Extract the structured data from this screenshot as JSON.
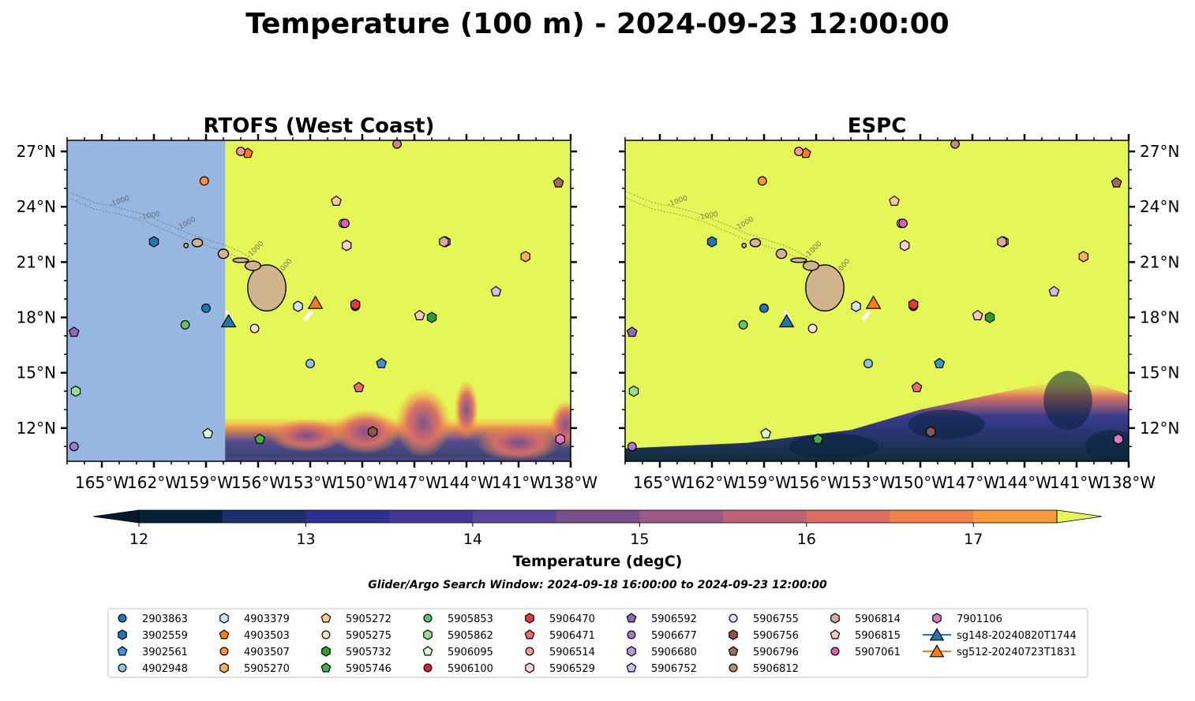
{
  "title": "Temperature (100 m) - 2024-09-23 12:00:00",
  "subtitle": "Glider/Argo Search Window: 2024-09-18 16:00:00 to 2024-09-23 12:00:00",
  "colors": {
    "ocean_clipped": "#97b6e0",
    "max_fill": "#e5f756",
    "land": "#d2b48c",
    "white_patch": "#ffffff"
  },
  "chart_data": [
    {
      "type": "heatmap",
      "panel": "left",
      "title": "RTOFS (West Coast)",
      "x_ticklabels": [
        "165°W",
        "162°W",
        "159°W",
        "156°W",
        "153°W",
        "150°W",
        "147°W",
        "144°W",
        "141°W",
        "138°W"
      ],
      "y_ticklabels": [
        "27°N",
        "24°N",
        "21°N",
        "18°N",
        "15°N",
        "12°N"
      ],
      "xlim": [
        -167,
        -138
      ],
      "ylim": [
        10.2,
        27.6
      ],
      "model_domain_west_edge_lon": -157.9,
      "bathymetry_contour_label": "-1000"
    },
    {
      "type": "heatmap",
      "panel": "right",
      "title": "ESPC",
      "x_ticklabels": [
        "165°W",
        "162°W",
        "159°W",
        "156°W",
        "153°W",
        "150°W",
        "147°W",
        "144°W",
        "141°W",
        "138°W"
      ],
      "y_ticklabels": [
        "27°N",
        "24°N",
        "21°N",
        "18°N",
        "15°N",
        "12°N"
      ],
      "xlim": [
        -167,
        -138
      ],
      "ylim": [
        10.2,
        27.6
      ],
      "bathymetry_contour_label": "-1000"
    }
  ],
  "colorbar": {
    "label": "Temperature (degC)",
    "ticks": [
      "12",
      "13",
      "14",
      "15",
      "16",
      "17"
    ],
    "range": [
      12,
      17.5
    ],
    "levels": [
      12,
      12.5,
      13,
      13.5,
      14,
      14.5,
      15,
      15.5,
      16,
      16.5,
      17,
      17.5
    ],
    "colors": [
      "#062339",
      "#1d2f6e",
      "#2f3192",
      "#463897",
      "#5b4495",
      "#7a4f8c",
      "#9b5a84",
      "#bd6376",
      "#dc6e64",
      "#ef804c",
      "#fa9a3c",
      "#f6c247"
    ],
    "under_color": "#041a2a",
    "over_color": "#e5f756"
  },
  "legend": {
    "columns": [
      [
        {
          "label": "2903863",
          "shape": "circle",
          "color": "#1f77b4"
        },
        {
          "label": "3902559",
          "shape": "hexagon",
          "color": "#1f77b4"
        },
        {
          "label": "3902561",
          "shape": "pentagon",
          "color": "#3b95d6"
        },
        {
          "label": "4902948",
          "shape": "circle",
          "color": "#8fc3e8"
        }
      ],
      [
        {
          "label": "4903379",
          "shape": "hexagon",
          "color": "#cfe5f5"
        },
        {
          "label": "4903503",
          "shape": "pentagon",
          "color": "#ff7f0e"
        },
        {
          "label": "4903507",
          "shape": "circle",
          "color": "#ff9331"
        },
        {
          "label": "5905270",
          "shape": "hexagon",
          "color": "#ffae62"
        }
      ],
      [
        {
          "label": "5905272",
          "shape": "pentagon",
          "color": "#ffc98e"
        },
        {
          "label": "5905275",
          "shape": "circle",
          "color": "#ffe0c0"
        },
        {
          "label": "5905732",
          "shape": "hexagon",
          "color": "#2ca02c"
        },
        {
          "label": "5905746",
          "shape": "pentagon",
          "color": "#45b045"
        }
      ],
      [
        {
          "label": "5905853",
          "shape": "circle",
          "color": "#62c462"
        },
        {
          "label": "5905862",
          "shape": "hexagon",
          "color": "#98df8a"
        },
        {
          "label": "5906095",
          "shape": "pentagon",
          "color": "#d8fbd0"
        },
        {
          "label": "5906100",
          "shape": "circle",
          "color": "#d62728"
        }
      ],
      [
        {
          "label": "5906470",
          "shape": "hexagon",
          "color": "#df3b3b"
        },
        {
          "label": "5906471",
          "shape": "pentagon",
          "color": "#ec6b6b"
        },
        {
          "label": "5906514",
          "shape": "circle",
          "color": "#f79a9a"
        },
        {
          "label": "5906529",
          "shape": "hexagon",
          "color": "#fcd0d0"
        }
      ],
      [
        {
          "label": "5906592",
          "shape": "pentagon",
          "color": "#9467bd"
        },
        {
          "label": "5906677",
          "shape": "circle",
          "color": "#a57ccc"
        },
        {
          "label": "5906680",
          "shape": "hexagon",
          "color": "#b897dc"
        },
        {
          "label": "5906752",
          "shape": "pentagon",
          "color": "#d2bcf0"
        }
      ],
      [
        {
          "label": "5906755",
          "shape": "circle",
          "color": "#ecdcfb"
        },
        {
          "label": "5906756",
          "shape": "hexagon",
          "color": "#8c564b"
        },
        {
          "label": "5906796",
          "shape": "pentagon",
          "color": "#a06a5d"
        },
        {
          "label": "5906812",
          "shape": "circle",
          "color": "#c08a7d"
        }
      ],
      [
        {
          "label": "5906814",
          "shape": "hexagon",
          "color": "#dca99b"
        },
        {
          "label": "5906815",
          "shape": "pentagon",
          "color": "#f7c9bd"
        },
        {
          "label": "5907061",
          "shape": "circle",
          "color": "#d85fbe"
        }
      ],
      [
        {
          "label": "7901106",
          "shape": "hexagon",
          "color": "#e377c2"
        },
        {
          "label": "sg148-20240820T1744",
          "shape": "triangle",
          "color": "#1f77b4",
          "line": true
        },
        {
          "label": "sg512-20240723T1831",
          "shape": "triangle",
          "color": "#ff7f0e",
          "line": true
        }
      ]
    ]
  },
  "platforms": [
    {
      "id": "2903863",
      "lon": -159.0,
      "lat": 18.5
    },
    {
      "id": "3902559",
      "lon": -162.0,
      "lat": 22.1
    },
    {
      "id": "3902561",
      "lon": -148.9,
      "lat": 15.5
    },
    {
      "id": "4902948",
      "lon": -153.0,
      "lat": 15.5
    },
    {
      "id": "4903379",
      "lon": -153.7,
      "lat": 18.6
    },
    {
      "id": "4903503",
      "lon": -156.6,
      "lat": 26.9
    },
    {
      "id": "4903507",
      "lon": -159.1,
      "lat": 25.4
    },
    {
      "id": "5905270",
      "lon": -140.6,
      "lat": 21.3
    },
    {
      "id": "5905272",
      "lon": -151.5,
      "lat": 24.3
    },
    {
      "id": "5905275",
      "lon": -156.2,
      "lat": 17.4
    },
    {
      "id": "5905732",
      "lon": -146.0,
      "lat": 18.0
    },
    {
      "id": "5905746",
      "lon": -155.9,
      "lat": 11.4
    },
    {
      "id": "5905853",
      "lon": -160.2,
      "lat": 17.6
    },
    {
      "id": "5905862",
      "lon": -166.5,
      "lat": 14.0
    },
    {
      "id": "5906095",
      "lon": -158.9,
      "lat": 11.7
    },
    {
      "id": "5906100",
      "lon": -150.4,
      "lat": 18.6
    },
    {
      "id": "5906470",
      "lon": -150.4,
      "lat": 18.7
    },
    {
      "id": "5906471",
      "lon": -150.2,
      "lat": 14.2
    },
    {
      "id": "5906514",
      "lon": -157.0,
      "lat": 27.0
    },
    {
      "id": "5906529",
      "lon": -150.9,
      "lat": 21.9
    },
    {
      "id": "5906592",
      "lon": -166.6,
      "lat": 17.2
    },
    {
      "id": "5906677",
      "lon": -166.6,
      "lat": 11.0
    },
    {
      "id": "5906680",
      "lon": -145.2,
      "lat": 22.1
    },
    {
      "id": "5906752",
      "lon": -142.3,
      "lat": 19.4
    },
    {
      "id": "5906755",
      "lon": -151.1,
      "lat": 23.1
    },
    {
      "id": "5906756",
      "lon": -149.4,
      "lat": 11.8
    },
    {
      "id": "5906796",
      "lon": -138.7,
      "lat": 25.3
    },
    {
      "id": "5906812",
      "lon": -148.0,
      "lat": 27.4
    },
    {
      "id": "5906814",
      "lon": -145.3,
      "lat": 22.1
    },
    {
      "id": "5906815",
      "lon": -146.7,
      "lat": 18.1
    },
    {
      "id": "5907061",
      "lon": -151.0,
      "lat": 23.1
    },
    {
      "id": "7901106",
      "lon": -138.6,
      "lat": 11.4
    },
    {
      "id": "sg148-20240820T1744",
      "lon": -157.7,
      "lat": 17.8
    },
    {
      "id": "sg512-20240723T1831",
      "lon": -152.7,
      "lat": 18.8
    }
  ],
  "islands": [
    {
      "name": "Hawaii",
      "lon": -155.5,
      "lat": 19.6,
      "rx": 1.1,
      "ry": 1.25
    },
    {
      "name": "Maui",
      "lon": -156.3,
      "lat": 20.8,
      "rx": 0.45,
      "ry": 0.25
    },
    {
      "name": "Molokai",
      "lon": -157.0,
      "lat": 21.1,
      "rx": 0.45,
      "ry": 0.12
    },
    {
      "name": "Oahu",
      "lon": -158.0,
      "lat": 21.45,
      "rx": 0.3,
      "ry": 0.25
    },
    {
      "name": "Kauai",
      "lon": -159.5,
      "lat": 22.05,
      "rx": 0.3,
      "ry": 0.22
    },
    {
      "name": "Niihau",
      "lon": -160.15,
      "lat": 21.9,
      "rx": 0.12,
      "ry": 0.12
    }
  ]
}
